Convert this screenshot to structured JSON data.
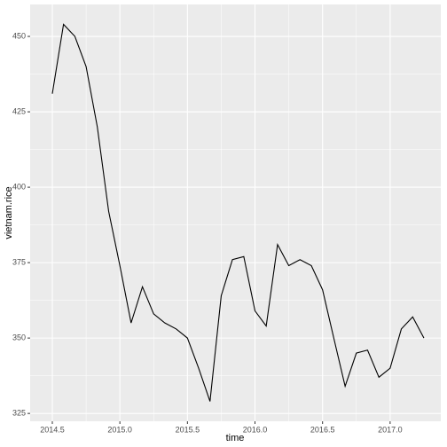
{
  "chart_data": {
    "type": "line",
    "x_label": "time",
    "y_label": "vietnam.rice",
    "x": [
      2014.5,
      2014.583,
      2014.667,
      2014.75,
      2014.833,
      2014.917,
      2015.0,
      2015.083,
      2015.167,
      2015.25,
      2015.333,
      2015.417,
      2015.5,
      2015.583,
      2015.667,
      2015.75,
      2015.833,
      2015.917,
      2016.0,
      2016.083,
      2016.167,
      2016.25,
      2016.333,
      2016.417,
      2016.5,
      2016.583,
      2016.667,
      2016.75,
      2016.833,
      2016.917,
      2017.0,
      2017.083,
      2017.167,
      2017.25
    ],
    "values": [
      431,
      454,
      450,
      440,
      420,
      392,
      374,
      355,
      367,
      358,
      355,
      353,
      350,
      340,
      329,
      364,
      376,
      377,
      359,
      354,
      381,
      374,
      376,
      374,
      366,
      350,
      334,
      345,
      346,
      337,
      340,
      353,
      357,
      350
    ],
    "color": "#000000",
    "xlim": [
      2014.336,
      2017.375
    ],
    "ylim": [
      322.4,
      460.6
    ],
    "xticks": [
      2014.5,
      {
        "value": 2015,
        "label": "2015.0"
      },
      2015.5,
      {
        "value": 2016,
        "label": "2016.0"
      },
      2016.5,
      {
        "value": 2017,
        "label": "2017.0"
      }
    ],
    "yticks": [
      325,
      350,
      375,
      400,
      425,
      450
    ],
    "grid": true
  }
}
